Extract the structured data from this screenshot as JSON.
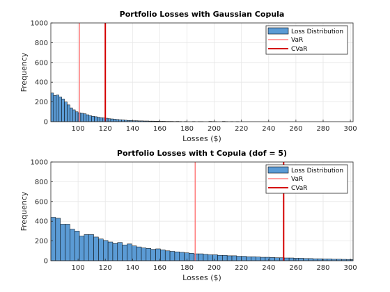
{
  "colors": {
    "bar": "#5b9bd5",
    "bar_edge": "#000000",
    "var": "#ff6b6b",
    "cvar": "#d40000",
    "grid": "#e6e6e6"
  },
  "chart_data": [
    {
      "type": "bar",
      "title": "Portfolio Losses with Gaussian Copula",
      "xlabel": "Losses ($)",
      "ylabel": "Frequency",
      "xlim": [
        80,
        302
      ],
      "ylim": [
        0,
        1000
      ],
      "xticks": [
        100,
        120,
        140,
        160,
        180,
        200,
        220,
        240,
        260,
        280,
        300
      ],
      "yticks": [
        0,
        200,
        400,
        600,
        800,
        1000
      ],
      "grid": true,
      "legend_position": "top-right",
      "legend": [
        "Loss Distribution",
        "VaR",
        "CVaR"
      ],
      "bin_start": 80,
      "bin_width": 2,
      "values": [
        290,
        265,
        270,
        250,
        230,
        200,
        170,
        140,
        120,
        100,
        90,
        85,
        80,
        70,
        60,
        55,
        50,
        45,
        40,
        38,
        35,
        30,
        28,
        25,
        22,
        20,
        18,
        15,
        12,
        12,
        10,
        10,
        8,
        8,
        7,
        7,
        6,
        6,
        5,
        5,
        4,
        4,
        3,
        3,
        3,
        2,
        3,
        2,
        0,
        2,
        0,
        0,
        2,
        0,
        1,
        1,
        0,
        0,
        3,
        2,
        1,
        0,
        0,
        3,
        1,
        0,
        1,
        0,
        1
      ],
      "var": 101,
      "cvar": 120
    },
    {
      "type": "bar",
      "title": "Portfolio Losses with t Copula (dof = 5)",
      "xlabel": "Losses ($)",
      "ylabel": "Frequency",
      "xlim": [
        80,
        302
      ],
      "ylim": [
        0,
        1000
      ],
      "xticks": [
        100,
        120,
        140,
        160,
        180,
        200,
        220,
        240,
        260,
        280,
        300
      ],
      "yticks": [
        0,
        200,
        400,
        600,
        800,
        1000
      ],
      "grid": true,
      "legend_position": "top-right",
      "legend": [
        "Loss Distribution",
        "VaR",
        "CVaR"
      ],
      "bin_start": 80,
      "bin_width": 3.5,
      "values": [
        440,
        430,
        370,
        370,
        320,
        300,
        250,
        265,
        265,
        240,
        220,
        205,
        190,
        175,
        185,
        160,
        170,
        150,
        140,
        130,
        125,
        115,
        120,
        110,
        100,
        95,
        90,
        85,
        80,
        75,
        70,
        70,
        65,
        60,
        60,
        55,
        55,
        50,
        50,
        45,
        45,
        40,
        40,
        38,
        35,
        35,
        33,
        30,
        30,
        28,
        28,
        25,
        25,
        22,
        22,
        20,
        20,
        18,
        18,
        15,
        15,
        14,
        13,
        12
      ],
      "var": 186,
      "cvar": 251
    }
  ]
}
